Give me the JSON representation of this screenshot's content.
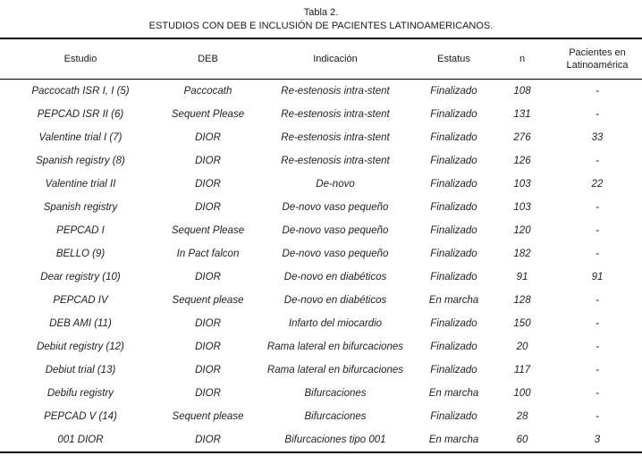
{
  "title": {
    "line1": "Tabla 2.",
    "line2": "ESTUDIOS CON DEB E INCLUSIÓN DE PACIENTES LATINOAMERICANOS."
  },
  "table": {
    "columns": [
      "Estudio",
      "DEB",
      "Indicación",
      "Estatus",
      "n",
      "Pacientes en Latinoamérica"
    ],
    "rows": [
      [
        "Paccocath ISR I, I (5)",
        "Paccocath",
        "Re-estenosis intra-stent",
        "Finalizado",
        "108",
        "-"
      ],
      [
        "PEPCAD ISR II (6)",
        "Sequent Please",
        "Re-estenosis intra-stent",
        "Finalizado",
        "131",
        "-"
      ],
      [
        "Valentine trial I (7)",
        "DIOR",
        "Re-estenosis intra-stent",
        "Finalizado",
        "276",
        "33"
      ],
      [
        "Spanish registry (8)",
        "DIOR",
        "Re-estenosis intra-stent",
        "Finalizado",
        "126",
        "-"
      ],
      [
        "Valentine trial II",
        "DIOR",
        "De-novo",
        "Finalizado",
        "103",
        "22"
      ],
      [
        "Spanish registry",
        "DIOR",
        "De-novo vaso pequeño",
        "Finalizado",
        "103",
        "-"
      ],
      [
        "PEPCAD I",
        "Sequent Please",
        "De-novo vaso pequeño",
        "Finalizado",
        "120",
        "-"
      ],
      [
        "BELLO (9)",
        "In Pact falcon",
        "De-novo vaso pequeño",
        "Finalizado",
        "182",
        "-"
      ],
      [
        "Dear registry (10)",
        "DIOR",
        "De-novo en diabéticos",
        "Finalizado",
        "91",
        "91"
      ],
      [
        "PEPCAD IV",
        "Sequent please",
        "De-novo en diabéticos",
        "En marcha",
        "128",
        "-"
      ],
      [
        "DEB AMI (11)",
        "DIOR",
        "Infarto del miocardio",
        "Finalizado",
        "150",
        "-"
      ],
      [
        "Debiut registry (12)",
        "DIOR",
        "Rama lateral en bifurcaciones",
        "Finalizado",
        "20",
        "-"
      ],
      [
        "Debiut trial (13)",
        "DIOR",
        "Rama lateral en bifurcaciones",
        "Finalizado",
        "117",
        "-"
      ],
      [
        "Debifu registry",
        "DIOR",
        "Bifurcaciones",
        "En marcha",
        "100",
        "-"
      ],
      [
        "PEPCAD V (14)",
        "Sequent please",
        "Bifurcaciones",
        "Finalizado",
        "28",
        "-"
      ],
      [
        "001 DIOR",
        "DIOR",
        "Bifurcaciones tipo 001",
        "En marcha",
        "60",
        "3"
      ]
    ]
  },
  "colors": {
    "text": "#1a1a1a",
    "line": "#000000",
    "background": "#ffffff"
  }
}
